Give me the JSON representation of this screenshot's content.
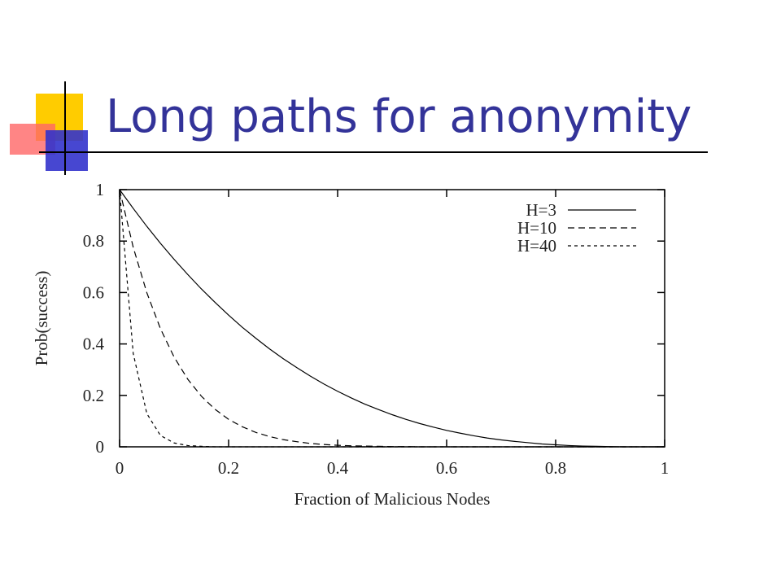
{
  "title": "Long paths for anonymity",
  "chart_data": {
    "type": "line",
    "xlabel": "Fraction of Malicious Nodes",
    "ylabel": "Prob(success)",
    "x": [
      0,
      0.025,
      0.05,
      0.075,
      0.1,
      0.125,
      0.15,
      0.175,
      0.2,
      0.225,
      0.25,
      0.275,
      0.3,
      0.325,
      0.35,
      0.375,
      0.4,
      0.425,
      0.45,
      0.475,
      0.5,
      0.525,
      0.55,
      0.575,
      0.6,
      0.625,
      0.65,
      0.675,
      0.7,
      0.725,
      0.75,
      0.775,
      0.8,
      0.825,
      0.85,
      0.875,
      0.9,
      0.925,
      0.95,
      0.975,
      1
    ],
    "series": [
      {
        "name": "H=3",
        "color": "#000000",
        "linestyle": "solid",
        "values": [
          1,
          0.927,
          0.857,
          0.791,
          0.729,
          0.67,
          0.614,
          0.562,
          0.512,
          0.465,
          0.422,
          0.381,
          0.343,
          0.308,
          0.275,
          0.244,
          0.216,
          0.19,
          0.166,
          0.145,
          0.125,
          0.107,
          0.091,
          0.077,
          0.064,
          0.053,
          0.043,
          0.034,
          0.027,
          0.021,
          0.016,
          0.011,
          0.008,
          0.005,
          0.003,
          0.002,
          0.001,
          0,
          0,
          0,
          0
        ]
      },
      {
        "name": "H=10",
        "color": "#000000",
        "linestyle": "dashed",
        "values": [
          1,
          0.776,
          0.599,
          0.459,
          0.349,
          0.263,
          0.197,
          0.146,
          0.107,
          0.078,
          0.056,
          0.04,
          0.028,
          0.02,
          0.013,
          0.009,
          0.006,
          0.004,
          0.003,
          0.002,
          0.001,
          0.001,
          0,
          0,
          0,
          0,
          0,
          0,
          0,
          0,
          0,
          0,
          0,
          0,
          0,
          0,
          0,
          0,
          0,
          0,
          0
        ]
      },
      {
        "name": "H=40",
        "color": "#000000",
        "linestyle": "dotted",
        "values": [
          1,
          0.363,
          0.129,
          0.044,
          0.015,
          0.005,
          0.002,
          0,
          0,
          0,
          0,
          0,
          0,
          0,
          0,
          0,
          0,
          0,
          0,
          0,
          0,
          0,
          0,
          0,
          0,
          0,
          0,
          0,
          0,
          0,
          0,
          0,
          0,
          0,
          0,
          0,
          0,
          0,
          0,
          0,
          0
        ]
      }
    ],
    "xlim": [
      0,
      1
    ],
    "xticks": [
      0,
      0.2,
      0.4,
      0.6,
      0.8,
      1
    ],
    "ylim": [
      0,
      1
    ],
    "yticks": [
      0,
      0.2,
      0.4,
      0.6,
      0.8,
      1
    ],
    "legend": "upper right"
  }
}
